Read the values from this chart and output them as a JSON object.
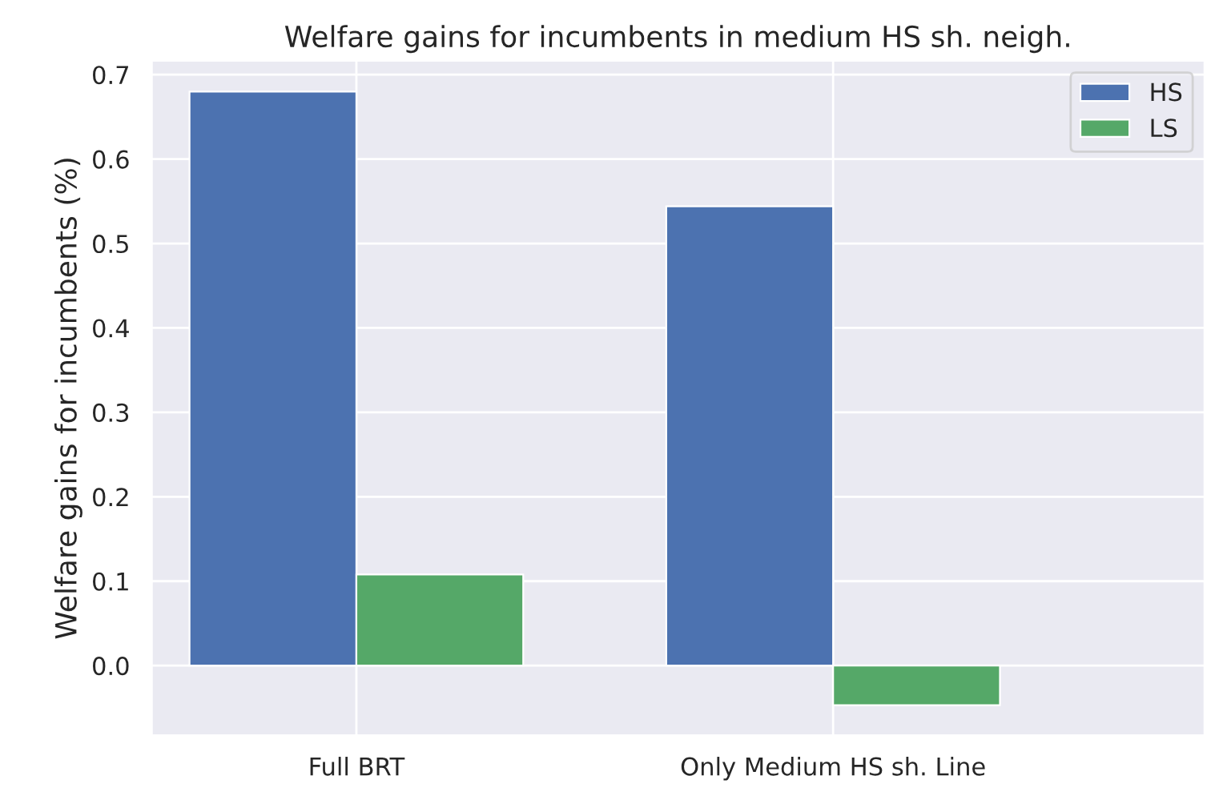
{
  "chart_data": {
    "type": "bar",
    "title": "Welfare gains for incumbents in medium HS sh. neigh.",
    "ylabel": "Welfare gains for incumbents (%)",
    "categories": [
      "Full BRT",
      "Only Medium HS sh. Line"
    ],
    "series": [
      {
        "name": "HS",
        "color": "#4c72b0",
        "values": [
          0.68,
          0.544
        ]
      },
      {
        "name": "LS",
        "color": "#55a868",
        "values": [
          0.108,
          -0.047
        ]
      }
    ],
    "ylim": [
      -0.083,
      0.717
    ],
    "yticks": [
      {
        "value": 0,
        "label": "0.0"
      },
      0.1,
      0.2,
      0.3,
      0.4,
      0.5,
      0.6,
      0.7
    ],
    "grid": true,
    "legend": "upper right"
  }
}
